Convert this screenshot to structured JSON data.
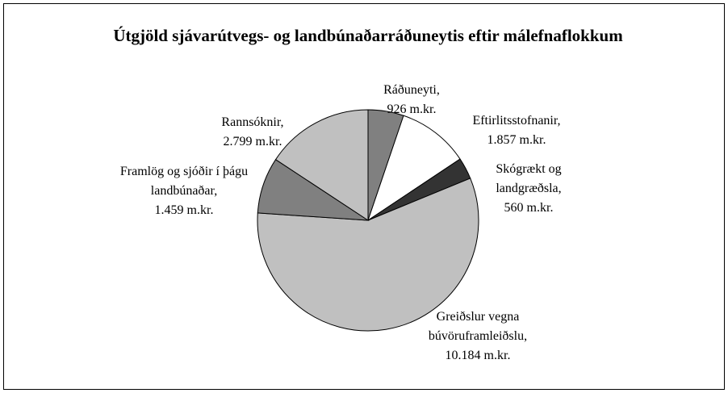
{
  "chart_data": {
    "type": "pie",
    "title": "Útgjöld sjávarútvegs- og landbúnaðarráðuneytis eftir málefnaflokkum",
    "categories": [
      "Ráðuneyti,",
      "Eftirlitsstofnanir,",
      "Skógrækt og landgræðsla,",
      "Greiðslur vegna búvöruframleiðslu,",
      "Framlög og sjóðir í þágu landbúnaðar,",
      "Rannsóknir,"
    ],
    "values": [
      926,
      1857,
      560,
      10184,
      1459,
      2799
    ],
    "value_labels": [
      "926 m.kr.",
      "1.857 m.kr.",
      "560 m.kr.",
      "10.184 m.kr.",
      "1.459 m.kr.",
      "2.799 m.kr."
    ],
    "colors": [
      "#808080",
      "#ffffff",
      "#333333",
      "#c0c0c0",
      "#808080",
      "#c0c0c0"
    ]
  }
}
